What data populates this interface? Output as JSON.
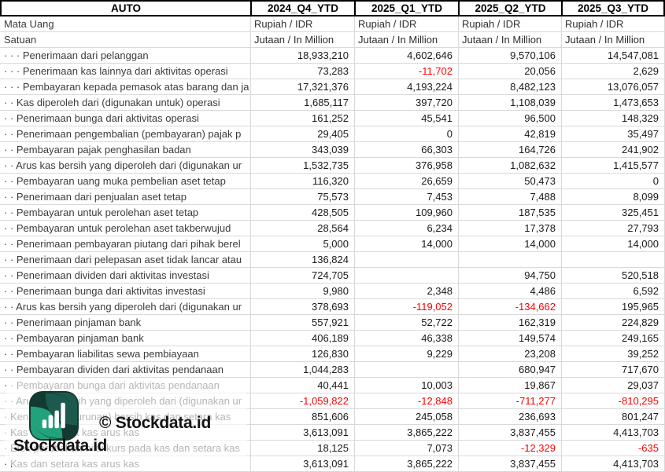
{
  "header": {
    "corner": "AUTO",
    "quarters": [
      "2024_Q4_YTD",
      "2025_Q1_YTD",
      "2025_Q2_YTD",
      "2025_Q3_YTD"
    ]
  },
  "meta_rows": [
    {
      "label": "Mata Uang",
      "values": [
        "Rupiah / IDR",
        "Rupiah / IDR",
        "Rupiah / IDR",
        "Rupiah / IDR"
      ]
    },
    {
      "label": "Satuan",
      "values": [
        "Jutaan / In Million",
        "Jutaan / In Million",
        "Jutaan / In Million",
        "Jutaan / In Million"
      ]
    }
  ],
  "rows": [
    {
      "label": "· · · Penerimaan dari pelanggan",
      "values": [
        "18,933,210",
        "4,602,646",
        "9,570,106",
        "14,547,081"
      ]
    },
    {
      "label": "· · · Penerimaan kas lainnya dari aktivitas operasi",
      "values": [
        "73,283",
        "-11,702",
        "20,056",
        "2,629"
      ]
    },
    {
      "label": "· · · Pembayaran kepada pemasok atas barang dan ja",
      "values": [
        "17,321,376",
        "4,193,224",
        "8,482,123",
        "13,076,057"
      ]
    },
    {
      "label": "· · Kas diperoleh dari (digunakan untuk) operasi",
      "values": [
        "1,685,117",
        "397,720",
        "1,108,039",
        "1,473,653"
      ]
    },
    {
      "label": "· · Penerimaan bunga dari aktivitas operasi",
      "values": [
        "161,252",
        "45,541",
        "96,500",
        "148,329"
      ]
    },
    {
      "label": "· · Penerimaan pengembalian (pembayaran) pajak p",
      "values": [
        "29,405",
        "0",
        "42,819",
        "35,497"
      ]
    },
    {
      "label": "· · Pembayaran pajak penghasilan badan",
      "values": [
        "343,039",
        "66,303",
        "164,726",
        "241,902"
      ]
    },
    {
      "label": "· · Arus kas bersih yang diperoleh dari (digunakan ur",
      "values": [
        "1,532,735",
        "376,958",
        "1,082,632",
        "1,415,577"
      ]
    },
    {
      "label": "· · Pembayaran uang muka pembelian aset tetap",
      "values": [
        "116,320",
        "26,659",
        "50,473",
        "0"
      ]
    },
    {
      "label": "· · Penerimaan dari penjualan aset tetap",
      "values": [
        "75,573",
        "7,453",
        "7,488",
        "8,099"
      ]
    },
    {
      "label": "· · Pembayaran untuk perolehan aset tetap",
      "values": [
        "428,505",
        "109,960",
        "187,535",
        "325,451"
      ]
    },
    {
      "label": "· · Pembayaran untuk perolehan aset takberwujud",
      "values": [
        "28,564",
        "6,234",
        "17,378",
        "27,793"
      ]
    },
    {
      "label": "· · Penerimaan pembayaran piutang dari pihak berel",
      "values": [
        "5,000",
        "14,000",
        "14,000",
        "14,000"
      ]
    },
    {
      "label": "· · Penerimaan dari pelepasan aset tidak lancar atau",
      "values": [
        "136,824",
        "",
        "",
        ""
      ]
    },
    {
      "label": "· · Penerimaan dividen dari aktivitas investasi",
      "values": [
        "724,705",
        "",
        "94,750",
        "520,518"
      ]
    },
    {
      "label": "· · Penerimaan bunga dari aktivitas investasi",
      "values": [
        "9,980",
        "2,348",
        "4,486",
        "6,592"
      ]
    },
    {
      "label": "· · Arus kas bersih yang diperoleh dari (digunakan ur",
      "values": [
        "378,693",
        "-119,052",
        "-134,662",
        "195,965"
      ]
    },
    {
      "label": "· · Penerimaan pinjaman bank",
      "values": [
        "557,921",
        "52,722",
        "162,319",
        "224,829"
      ]
    },
    {
      "label": "· · Pembayaran pinjaman bank",
      "values": [
        "406,189",
        "46,338",
        "149,574",
        "249,165"
      ]
    },
    {
      "label": "· · Pembayaran liabilitas sewa pembiayaan",
      "values": [
        "126,830",
        "9,229",
        "23,208",
        "39,252"
      ]
    },
    {
      "label": "· · Pembayaran dividen dari aktivitas pendanaan",
      "values": [
        "1,044,283",
        "",
        "680,947",
        "717,670"
      ]
    },
    {
      "label": "· · Pembayaran bunga dari aktivitas pendanaan",
      "values": [
        "40,441",
        "10,003",
        "19,867",
        "29,037"
      ]
    },
    {
      "label": "· · Arus kas bersih yang diperoleh dari (digunakan ur",
      "values": [
        "-1,059,822",
        "-12,848",
        "-711,277",
        "-810,295"
      ]
    },
    {
      "label": "· Kenaikan (penurunan) bersih kas dan setara kas",
      "values": [
        "851,606",
        "245,058",
        "236,693",
        "801,247"
      ]
    },
    {
      "label": "· Kas dan setara kas arus kas",
      "values": [
        "3,613,091",
        "3,865,222",
        "3,837,455",
        "4,413,703"
      ]
    },
    {
      "label": "· Efek perubahan nilai kurs pada kas dan setara kas",
      "values": [
        "18,125",
        "7,073",
        "-12,329",
        "-635"
      ]
    },
    {
      "label": "· Kas dan setara kas arus kas",
      "values": [
        "3,613,091",
        "3,865,222",
        "3,837,455",
        "4,413,703"
      ]
    }
  ],
  "watermark": {
    "brand": "Stockdata.id",
    "copyright": "© Stockdata.id",
    "logo_dark": "#123a33",
    "logo_mid": "#1d5a4e",
    "logo_green": "#21a27c"
  },
  "colors": {
    "negative": "#ff0000",
    "gridline": "#d9d9d9",
    "header_border": "#000000"
  }
}
